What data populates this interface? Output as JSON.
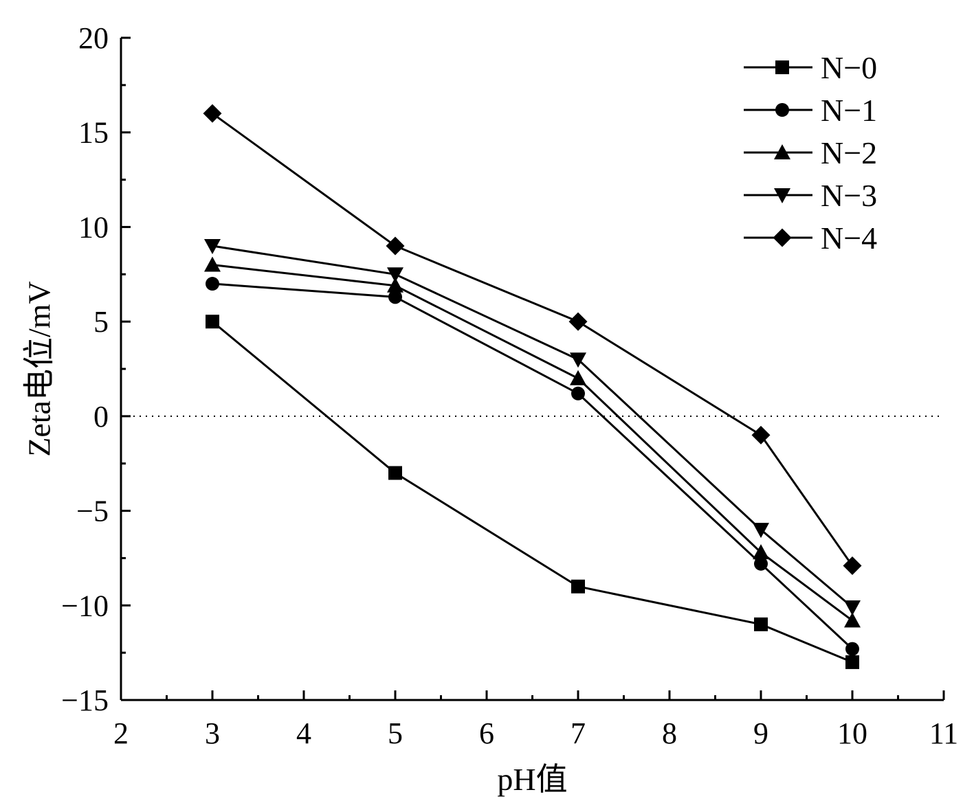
{
  "chart_data": {
    "type": "line",
    "title": "",
    "xlabel": "pH值",
    "ylabel": "Zeta电位/mV",
    "xlim": [
      2,
      11
    ],
    "ylim": [
      -15,
      20
    ],
    "x_ticks": [
      "2",
      "3",
      "4",
      "5",
      "6",
      "7",
      "8",
      "9",
      "10",
      "11"
    ],
    "y_ticks": [
      "−15",
      "−10",
      "−5",
      "0",
      "5",
      "10",
      "15",
      "20"
    ],
    "x": [
      3,
      5,
      7,
      9,
      10
    ],
    "reference_line": {
      "y": 0,
      "style": "dotted"
    },
    "legend_position": "top-right",
    "series": [
      {
        "name": "N−0",
        "marker": "square",
        "values": [
          5,
          -3,
          -9,
          -11,
          -13
        ]
      },
      {
        "name": "N−1",
        "marker": "circle",
        "values": [
          7,
          6.3,
          1.2,
          -7.8,
          -12.3
        ]
      },
      {
        "name": "N−2",
        "marker": "triangle-up",
        "values": [
          8,
          6.9,
          2,
          -7.2,
          -10.8
        ]
      },
      {
        "name": "N−3",
        "marker": "triangle-down",
        "values": [
          9,
          7.5,
          3,
          -6,
          -10.1
        ]
      },
      {
        "name": "N−4",
        "marker": "diamond",
        "values": [
          16,
          9,
          5,
          -1,
          -7.9
        ]
      }
    ]
  }
}
